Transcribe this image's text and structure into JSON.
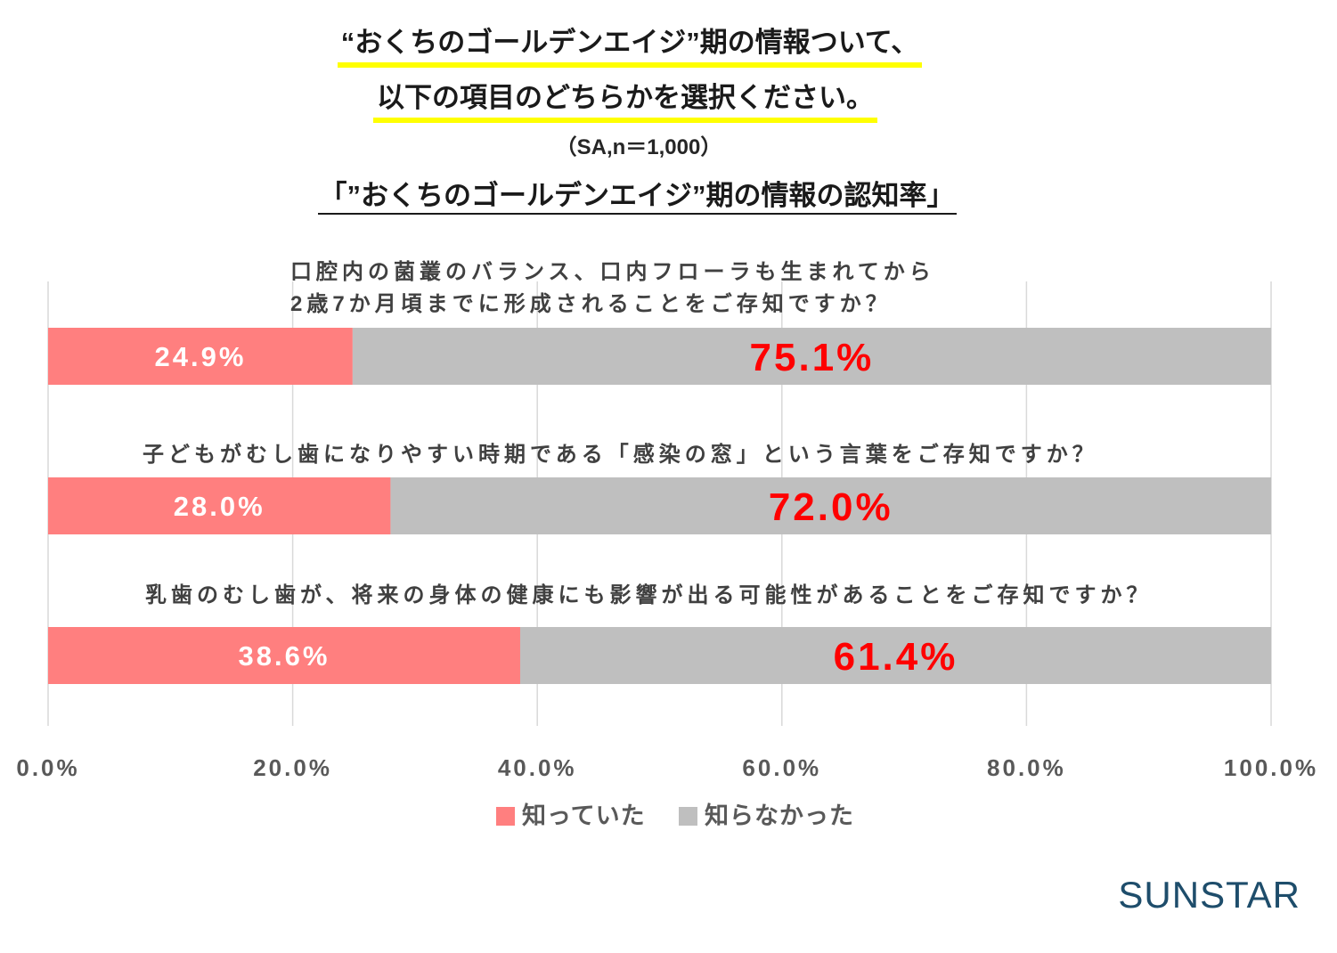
{
  "header": {
    "line1": "“おくちのゴールデンエイジ”期の情報ついて、",
    "line2": "以下の項目のどちらかを選択ください。",
    "sample_note": "（SA,n＝1,000）"
  },
  "colors": {
    "title_highlight": "#FFFF00",
    "gridline": "#D9D9D9",
    "brand": "#1E4D6B"
  },
  "brand": {
    "logo_text": "SUNSTAR"
  },
  "chart_data": {
    "type": "bar",
    "orientation": "horizontal",
    "stacking": "percent",
    "title": "「”おくちのゴールデンエイジ”期の情報の認知率」",
    "categories": [
      "口腔内の菌叢のバランス、口内フローラも生まれてから\n2歳7か月頃までに形成されることをご存知ですか？",
      "子どもがむし歯になりやすい時期である「感染の窓」という言葉をご存知ですか？",
      "乳歯のむし歯が、将来の身体の健康にも影響が出る可能性があることをご存知ですか？"
    ],
    "series": [
      {
        "name": "知っていた",
        "values": [
          24.9,
          28.0,
          38.6
        ],
        "value_labels": [
          "24.9%",
          "28.0%",
          "38.6%"
        ],
        "color": "#FF7F7F",
        "label_color": "#FFFFFF"
      },
      {
        "name": "知らなかった",
        "values": [
          75.1,
          72.0,
          61.4
        ],
        "value_labels": [
          "75.1%",
          "72.0%",
          "61.4%"
        ],
        "color": "#BFBFBF",
        "label_color": "#FF0000"
      }
    ],
    "xlim": [
      0,
      100
    ],
    "x_ticks": [
      0,
      20,
      40,
      60,
      80,
      100
    ],
    "x_tick_labels": [
      "0.0%",
      "20.0%",
      "40.0%",
      "60.0%",
      "80.0%",
      "100.0%"
    ],
    "xlabel": "",
    "ylabel": "",
    "grid": true,
    "legend": "bottom-center"
  }
}
